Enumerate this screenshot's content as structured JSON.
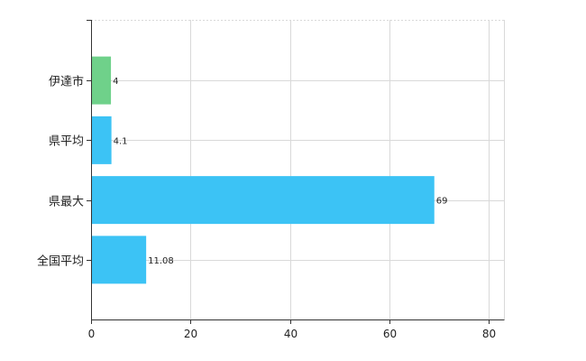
{
  "chart_data": {
    "type": "bar",
    "orientation": "horizontal",
    "categories": [
      "伊達市",
      "県平均",
      "県最大",
      "全国平均"
    ],
    "values": [
      4,
      4.1,
      69,
      11.08
    ],
    "data_labels": [
      "4",
      "4.1",
      "69",
      "11.08"
    ],
    "bar_colors": [
      "#6fd18a",
      "#3cc3f5",
      "#3cc3f5",
      "#3cc3f5"
    ],
    "xlim": [
      0,
      83
    ],
    "x_ticks": [
      0,
      20,
      40,
      60,
      80
    ],
    "x_tick_labels": [
      "0",
      "20",
      "40",
      "60",
      "80"
    ],
    "grid": true,
    "title": "",
    "xlabel": "",
    "ylabel": ""
  }
}
